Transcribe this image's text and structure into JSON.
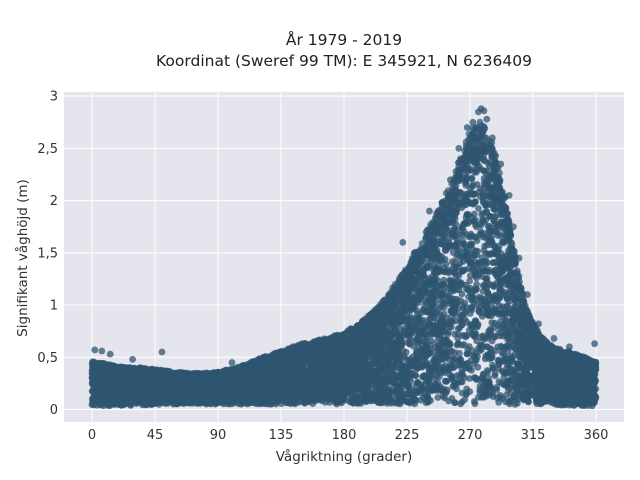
{
  "chart_data": {
    "type": "scatter",
    "title_lines": [
      "År 1979 - 2019",
      "Koordinat (Sweref 99 TM): E 345921, N 6236409"
    ],
    "xlabel": "Vågriktning (grader)",
    "ylabel": "Signifikant våghöjd (m)",
    "xlim": [
      -20,
      380
    ],
    "ylim": [
      -0.12,
      3.04
    ],
    "x_ticks": [
      0,
      45,
      90,
      135,
      180,
      225,
      270,
      315,
      360
    ],
    "x_tick_labels": [
      "0",
      "45",
      "90",
      "135",
      "180",
      "225",
      "270",
      "315",
      "360"
    ],
    "y_ticks": [
      0,
      0.5,
      1,
      1.5,
      2,
      2.5,
      3
    ],
    "y_tick_labels": [
      "0",
      "0,5",
      "1",
      "1,5",
      "2",
      "2,5",
      "3"
    ],
    "grid": true,
    "marker_color": "#2f5570",
    "background_color": "#e5e5ee",
    "upper_envelope": {
      "x": [
        0,
        10,
        20,
        30,
        45,
        60,
        75,
        90,
        105,
        120,
        135,
        150,
        165,
        180,
        195,
        210,
        225,
        240,
        250,
        260,
        265,
        270,
        275,
        280,
        285,
        290,
        295,
        300,
        305,
        310,
        320,
        330,
        340,
        350,
        360
      ],
      "y": [
        0.45,
        0.43,
        0.4,
        0.4,
        0.38,
        0.35,
        0.34,
        0.35,
        0.4,
        0.48,
        0.55,
        0.62,
        0.66,
        0.72,
        0.85,
        1.05,
        1.35,
        1.7,
        1.95,
        2.25,
        2.45,
        2.62,
        2.72,
        2.7,
        2.55,
        2.3,
        2.0,
        1.6,
        1.25,
        0.95,
        0.7,
        0.58,
        0.55,
        0.5,
        0.45
      ]
    },
    "lower_envelope": {
      "x": [
        0,
        60,
        120,
        180,
        240,
        300,
        360
      ],
      "y": [
        0.03,
        0.05,
        0.05,
        0.05,
        0.05,
        0.05,
        0.03
      ]
    },
    "outliers": [
      {
        "x": 2,
        "y": 0.57
      },
      {
        "x": 7,
        "y": 0.56
      },
      {
        "x": 13,
        "y": 0.53
      },
      {
        "x": 50,
        "y": 0.55
      },
      {
        "x": 29,
        "y": 0.48
      },
      {
        "x": 100,
        "y": 0.45
      },
      {
        "x": 222,
        "y": 1.6
      },
      {
        "x": 241,
        "y": 1.9
      },
      {
        "x": 250,
        "y": 1.98
      },
      {
        "x": 256,
        "y": 2.2
      },
      {
        "x": 262,
        "y": 2.5
      },
      {
        "x": 268,
        "y": 2.7
      },
      {
        "x": 272,
        "y": 2.75
      },
      {
        "x": 276,
        "y": 2.85
      },
      {
        "x": 278,
        "y": 2.88
      },
      {
        "x": 280,
        "y": 2.86
      },
      {
        "x": 282,
        "y": 2.78
      },
      {
        "x": 286,
        "y": 2.6
      },
      {
        "x": 292,
        "y": 2.35
      },
      {
        "x": 298,
        "y": 2.05
      },
      {
        "x": 301,
        "y": 1.75
      },
      {
        "x": 305,
        "y": 1.45
      },
      {
        "x": 311,
        "y": 1.1
      },
      {
        "x": 319,
        "y": 0.82
      },
      {
        "x": 330,
        "y": 0.68
      },
      {
        "x": 341,
        "y": 0.6
      },
      {
        "x": 359,
        "y": 0.63
      }
    ]
  }
}
